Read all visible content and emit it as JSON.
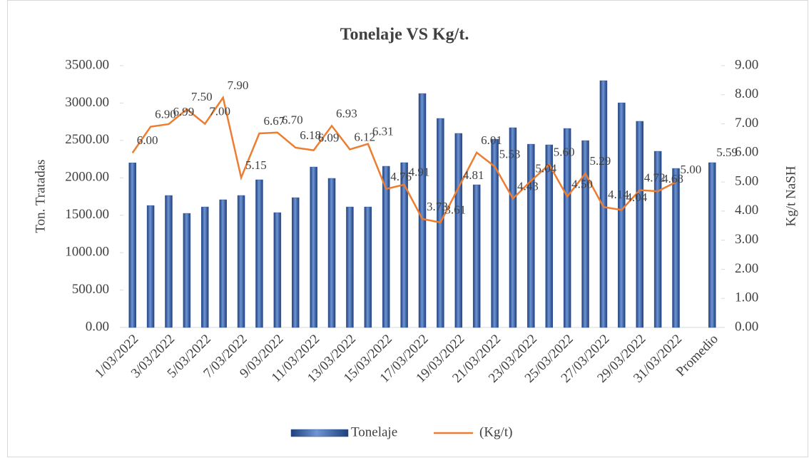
{
  "chart_data": {
    "type": "bar-line",
    "title": "Tonelaje VS Kg/t.",
    "ylabel": "Ton. Tratadas",
    "y2label": "Kg/t NaSH",
    "categories": [
      "1/03/2022",
      null,
      "3/03/2022",
      null,
      "5/03/2022",
      null,
      "7/03/2022",
      null,
      "9/03/2022",
      null,
      "11/03/2022",
      null,
      "13/03/2022",
      null,
      "15/03/2022",
      null,
      "17/03/2022",
      null,
      "19/03/2022",
      null,
      "21/03/2022",
      null,
      "23/03/2022",
      null,
      "25/03/2022",
      null,
      "27/03/2022",
      null,
      "29/03/2022",
      null,
      "31/03/2022",
      null,
      "Promedio"
    ],
    "series": [
      {
        "name": "Tonelaje",
        "color": "#2f5597",
        "kind": "bar",
        "values": [
          2200,
          1630,
          1764,
          1525,
          1611,
          1707,
          1764,
          1974,
          1535,
          1735,
          2145,
          1993,
          1611,
          1611,
          2155,
          2203,
          3127,
          2794,
          2594,
          1907,
          2517,
          2670,
          2450,
          2441,
          2660,
          2498,
          3299,
          3003,
          2756,
          2355,
          2126,
          null,
          2203
        ]
      },
      {
        "name": "(Kg/t)",
        "color": "#ed7d31",
        "kind": "line",
        "axis": "y2",
        "values": [
          6,
          6.9,
          6.99,
          7.5,
          7,
          7.9,
          5.15,
          6.67,
          6.7,
          6.18,
          6.09,
          6.93,
          6.12,
          6.31,
          4.76,
          4.91,
          3.73,
          3.61,
          4.81,
          6.01,
          5.53,
          4.43,
          5.04,
          5.6,
          4.5,
          5.29,
          4.14,
          4.04,
          4.72,
          4.68,
          5,
          null,
          5.59
        ],
        "value_labels": [
          "6.00",
          "6.90",
          "6.99",
          "7.50",
          "7.00",
          "7.90",
          "5.15",
          "6.67",
          "6.70",
          "6.18",
          "6.09",
          "6.93",
          "6.12",
          "6.31",
          "4.76",
          "4.91",
          "3.73",
          "3.61",
          "4.81",
          "6.01",
          "5.53",
          "4.43",
          "5.04",
          "5.60",
          "4.50",
          "5.29",
          "4.14",
          "4.04",
          "4.72",
          "4.68",
          "5.00",
          null,
          "5.59"
        ]
      }
    ],
    "ylim": [
      0,
      3500
    ],
    "yticks": [
      {
        "value": 0,
        "label": "0.00"
      },
      {
        "value": 500,
        "label": "500.00"
      },
      {
        "value": 1000,
        "label": "1000.00"
      },
      {
        "value": 1500,
        "label": "1500.00"
      },
      {
        "value": 2000,
        "label": "2000.00"
      },
      {
        "value": 2500,
        "label": "2500.00"
      },
      {
        "value": 3000,
        "label": "3000.00"
      },
      {
        "value": 3500,
        "label": "3500.00"
      }
    ],
    "y2lim": [
      0,
      9
    ],
    "y2ticks": [
      {
        "value": 0,
        "label": "0.00"
      },
      {
        "value": 1,
        "label": "1.00"
      },
      {
        "value": 2,
        "label": "2.00"
      },
      {
        "value": 3,
        "label": "3.00"
      },
      {
        "value": 4,
        "label": "4.00"
      },
      {
        "value": 5,
        "label": "5.00"
      },
      {
        "value": 6,
        "label": "6.00"
      },
      {
        "value": 7,
        "label": "7.00"
      },
      {
        "value": 8,
        "label": "8.00"
      },
      {
        "value": 9,
        "label": "9.00"
      }
    ],
    "legend": "bottom"
  }
}
